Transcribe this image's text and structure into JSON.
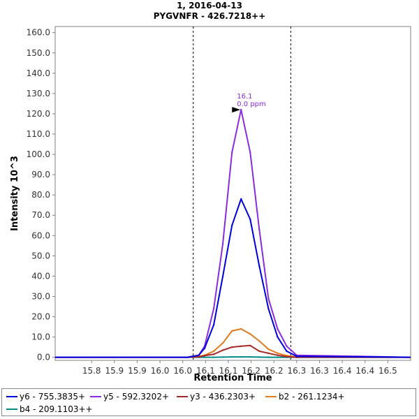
{
  "chart_data": {
    "type": "line",
    "title": "1, 2016-04-13",
    "subtitle": "PYGVNFR - 426.7218++",
    "xlabel": "Retention Time",
    "ylabel": "Intensity 10^3",
    "xlim": [
      15.72,
      16.5
    ],
    "ylim": [
      -1.5,
      163
    ],
    "x_ticks": [
      15.8,
      15.85,
      15.9,
      15.95,
      16.0,
      16.05,
      16.1,
      16.15,
      16.2,
      16.25,
      16.3,
      16.35,
      16.4,
      16.45
    ],
    "x_tick_labels": [
      "15.8",
      "15.9",
      "15.9",
      "16.0",
      "16.0",
      "16.1",
      "16.1",
      "16.2",
      "16.2",
      "16.3",
      "16.3",
      "16.4",
      "16.4",
      "16.5"
    ],
    "y_ticks": [
      0,
      10,
      20,
      30,
      40,
      50,
      60,
      70,
      80,
      90,
      100,
      110,
      120,
      130,
      140,
      150,
      160
    ],
    "y_tick_labels": [
      "0.0",
      "10.0",
      "20.0",
      "30.0",
      "40.0",
      "50.0",
      "60.0",
      "70.0",
      "80.0",
      "90.0",
      "100.0",
      "110.0",
      "120.0",
      "130.0",
      "140.0",
      "150.0",
      "160.0"
    ],
    "integration_bounds": [
      16.023,
      16.237
    ],
    "x": [
      15.72,
      16.01,
      16.035,
      16.048,
      16.068,
      16.088,
      16.108,
      16.128,
      16.148,
      16.168,
      16.188,
      16.208,
      16.228,
      16.25,
      16.5
    ],
    "series": [
      {
        "name": "y6 - 755.3835+",
        "color": "#0000dd",
        "values": [
          0,
          0,
          1.0,
          4.5,
          16,
          40,
          65,
          78,
          68,
          45,
          24,
          10,
          3,
          0.5,
          0
        ]
      },
      {
        "name": "y5 - 592.3202+",
        "color": "#8a2be2",
        "values": [
          0,
          0,
          1.0,
          5.5,
          24,
          56,
          101,
          122,
          101,
          63,
          29,
          14,
          5.5,
          1.0,
          0
        ]
      },
      {
        "name": "y3 - 436.2303+",
        "color": "#a52a2a",
        "values": [
          0,
          0,
          0.2,
          0.8,
          1.5,
          3.5,
          5.0,
          5.5,
          5.8,
          3.0,
          2.0,
          1.0,
          0.3,
          0,
          0
        ]
      },
      {
        "name": "b2 - 261.1234+",
        "color": "#e07b20",
        "values": [
          0,
          0,
          0.5,
          1.0,
          3.0,
          7.0,
          13,
          14,
          11.5,
          8.0,
          4.0,
          2.0,
          0.8,
          0.2,
          0
        ]
      },
      {
        "name": "b4 - 209.1103++",
        "color": "#008b8b",
        "values": [
          0,
          0,
          0,
          0,
          0,
          0.1,
          0.2,
          0.2,
          0.2,
          0.1,
          0,
          0,
          0,
          0,
          0
        ]
      }
    ],
    "annotation": {
      "x": 16.128,
      "y": 122,
      "text": [
        "16.1",
        "0.0 ppm"
      ],
      "color": "#8a2be2"
    },
    "grid": false,
    "legend": "bottom"
  }
}
